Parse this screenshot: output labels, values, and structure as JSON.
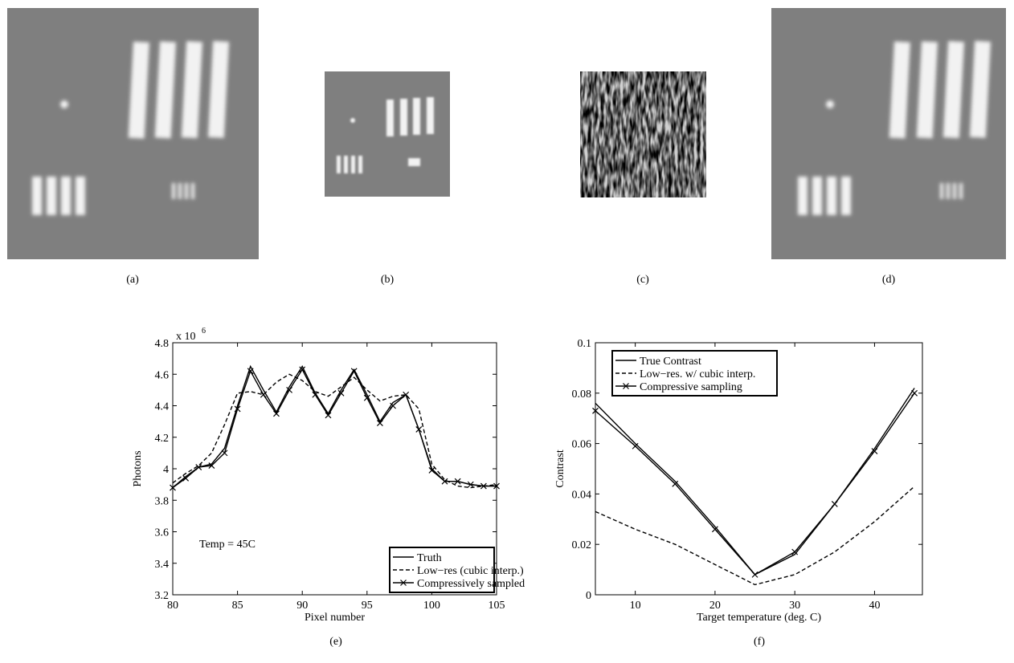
{
  "panels": {
    "a": "(a)",
    "b": "(b)",
    "c": "(c)",
    "d": "(d)",
    "e": "(e)",
    "f": "(f)"
  },
  "chart_data": [
    {
      "type": "line",
      "xlabel": "Pixel number",
      "ylabel": "Photons",
      "multiplier": "x 10",
      "multiplier_exp": "6",
      "annotation": "Temp = 45C",
      "legend": "lower right",
      "x": [
        80,
        81,
        82,
        83,
        84,
        85,
        86,
        87,
        88,
        89,
        90,
        91,
        92,
        93,
        94,
        95,
        96,
        97,
        98,
        99,
        100,
        101,
        102,
        103,
        104,
        105
      ],
      "xlim": [
        80,
        105
      ],
      "xticks": [
        80,
        85,
        90,
        95,
        100,
        105
      ],
      "ylim": [
        3.2,
        4.8
      ],
      "yticks": [
        3.2,
        3.4,
        3.6,
        3.8,
        4,
        4.2,
        4.4,
        4.6,
        4.8
      ],
      "series": [
        {
          "name": "Truth",
          "color": "#000000",
          "style": "solid",
          "values": [
            3.88,
            3.95,
            4.01,
            4.03,
            4.13,
            4.4,
            4.65,
            4.5,
            4.36,
            4.52,
            4.65,
            4.48,
            4.35,
            4.5,
            4.63,
            4.47,
            4.3,
            4.42,
            4.47,
            4.25,
            4.0,
            3.92,
            3.92,
            3.9,
            3.89,
            3.89
          ]
        },
        {
          "name": "Low−res (cubic interp.)",
          "color": "#000000",
          "style": "dashed",
          "values": [
            3.91,
            3.97,
            4.02,
            4.1,
            4.28,
            4.48,
            4.49,
            4.47,
            4.55,
            4.6,
            4.56,
            4.49,
            4.46,
            4.52,
            4.58,
            4.5,
            4.43,
            4.46,
            4.47,
            4.38,
            4.03,
            3.93,
            3.89,
            3.88,
            3.89,
            3.9
          ]
        },
        {
          "name": "Compressively sampled",
          "color": "#000000",
          "style": "solid",
          "marker": "x",
          "values": [
            3.88,
            3.94,
            4.01,
            4.02,
            4.1,
            4.38,
            4.62,
            4.47,
            4.35,
            4.5,
            4.63,
            4.47,
            4.34,
            4.48,
            4.62,
            4.45,
            4.29,
            4.4,
            4.47,
            4.25,
            3.99,
            3.92,
            3.92,
            3.9,
            3.89,
            3.89
          ]
        }
      ]
    },
    {
      "type": "line",
      "xlabel": "Target temperature (deg. C)",
      "ylabel": "Contrast",
      "legend": "upper left",
      "x": [
        5,
        10,
        15,
        20,
        25,
        30,
        35,
        40,
        45
      ],
      "xlim": [
        5,
        46
      ],
      "xticks": [
        10,
        20,
        30,
        40
      ],
      "ylim": [
        0,
        0.1
      ],
      "yticks": [
        0,
        0.02,
        0.04,
        0.06,
        0.08,
        0.1
      ],
      "series": [
        {
          "name": "True Contrast",
          "color": "#000000",
          "style": "solid",
          "values": [
            0.076,
            0.06,
            0.045,
            0.027,
            0.008,
            0.016,
            0.036,
            0.058,
            0.082
          ]
        },
        {
          "name": "Low−res. w/ cubic interp.",
          "color": "#000000",
          "style": "dashed",
          "values": [
            0.033,
            0.026,
            0.02,
            0.012,
            0.004,
            0.008,
            0.017,
            0.029,
            0.043
          ]
        },
        {
          "name": "Compressive sampling",
          "color": "#000000",
          "style": "solid",
          "marker": "x",
          "values": [
            0.073,
            0.059,
            0.044,
            0.026,
            0.008,
            0.017,
            0.036,
            0.057,
            0.08
          ]
        }
      ]
    }
  ]
}
